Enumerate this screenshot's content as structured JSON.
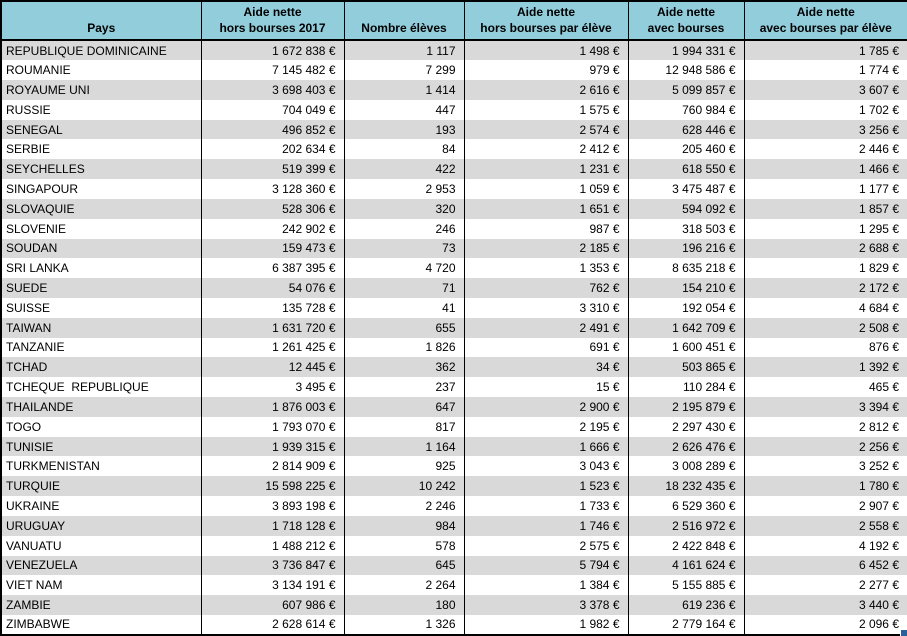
{
  "colors": {
    "header_bg": "#92CDDC",
    "stripe_bg": "#D9D9D9",
    "row_bg": "#FFFFFF",
    "border": "#000000",
    "fill_handle": "#2A6099"
  },
  "table": {
    "columns": [
      {
        "label": "Pays"
      },
      {
        "label": "Aide nette\nhors bourses 2017"
      },
      {
        "label": "Nombre élèves"
      },
      {
        "label": "Aide nette\nhors bourses par élève"
      },
      {
        "label": "Aide nette\navec bourses"
      },
      {
        "label": "Aide nette\navec bourses par élève"
      }
    ],
    "rows": [
      [
        "REPUBLIQUE DOMINICAINE",
        "1 672 838 €",
        "1 117",
        "1 498 €",
        "1 994 331 €",
        "1 785 €"
      ],
      [
        "ROUMANIE",
        "7 145 482 €",
        "7 299",
        "979 €",
        "12 948 586 €",
        "1 774 €"
      ],
      [
        "ROYAUME UNI",
        "3 698 403 €",
        "1 414",
        "2 616 €",
        "5 099 857 €",
        "3 607 €"
      ],
      [
        "RUSSIE",
        "704 049 €",
        "447",
        "1 575 €",
        "760 984 €",
        "1 702 €"
      ],
      [
        "SENEGAL",
        "496 852 €",
        "193",
        "2 574 €",
        "628 446 €",
        "3 256 €"
      ],
      [
        "SERBIE",
        "202 634 €",
        "84",
        "2 412 €",
        "205 460 €",
        "2 446 €"
      ],
      [
        "SEYCHELLES",
        "519 399 €",
        "422",
        "1 231 €",
        "618 550 €",
        "1 466 €"
      ],
      [
        "SINGAPOUR",
        "3 128 360 €",
        "2 953",
        "1 059 €",
        "3 475 487 €",
        "1 177 €"
      ],
      [
        "SLOVAQUIE",
        "528 306 €",
        "320",
        "1 651 €",
        "594 092 €",
        "1 857 €"
      ],
      [
        "SLOVENIE",
        "242 902 €",
        "246",
        "987 €",
        "318 503 €",
        "1 295 €"
      ],
      [
        "SOUDAN",
        "159 473 €",
        "73",
        "2 185 €",
        "196 216 €",
        "2 688 €"
      ],
      [
        "SRI LANKA",
        "6 387 395 €",
        "4 720",
        "1 353 €",
        "8 635 218 €",
        "1 829 €"
      ],
      [
        "SUEDE",
        "54 076 €",
        "71",
        "762 €",
        "154 210 €",
        "2 172 €"
      ],
      [
        "SUISSE",
        "135 728 €",
        "41",
        "3 310 €",
        "192 054 €",
        "4 684 €"
      ],
      [
        "TAIWAN",
        "1 631 720 €",
        "655",
        "2 491 €",
        "1 642 709 €",
        "2 508 €"
      ],
      [
        "TANZANIE",
        "1 261 425 €",
        "1 826",
        "691 €",
        "1 600 451 €",
        "876 €"
      ],
      [
        "TCHAD",
        "12 445 €",
        "362",
        "34 €",
        "503 865 €",
        "1 392 €"
      ],
      [
        "TCHEQUE  REPUBLIQUE",
        "3 495 €",
        "237",
        "15 €",
        "110 284 €",
        "465 €"
      ],
      [
        "THAILANDE",
        "1 876 003 €",
        "647",
        "2 900 €",
        "2 195 879 €",
        "3 394 €"
      ],
      [
        "TOGO",
        "1 793 070 €",
        "817",
        "2 195 €",
        "2 297 430 €",
        "2 812 €"
      ],
      [
        "TUNISIE",
        "1 939 315 €",
        "1 164",
        "1 666 €",
        "2 626 476 €",
        "2 256 €"
      ],
      [
        "TURKMENISTAN",
        "2 814 909 €",
        "925",
        "3 043 €",
        "3 008 289 €",
        "3 252 €"
      ],
      [
        "TURQUIE",
        "15 598 225 €",
        "10 242",
        "1 523 €",
        "18 232 435 €",
        "1 780 €"
      ],
      [
        "UKRAINE",
        "3 893 198 €",
        "2 246",
        "1 733 €",
        "6 529 360 €",
        "2 907 €"
      ],
      [
        "URUGUAY",
        "1 718 128 €",
        "984",
        "1 746 €",
        "2 516 972 €",
        "2 558 €"
      ],
      [
        "VANUATU",
        "1 488 212 €",
        "578",
        "2 575 €",
        "2 422 848 €",
        "4 192 €"
      ],
      [
        "VENEZUELA",
        "3 736 847 €",
        "645",
        "5 794 €",
        "4 161 624 €",
        "6 452 €"
      ],
      [
        "VIET NAM",
        "3 134 191 €",
        "2 264",
        "1 384 €",
        "5 155 885 €",
        "2 277 €"
      ],
      [
        "ZAMBIE",
        "607 986 €",
        "180",
        "3 378 €",
        "619 236 €",
        "3 440 €"
      ],
      [
        "ZIMBABWE",
        "2 628 614 €",
        "1 326",
        "1 982 €",
        "2 779 164 €",
        "2 096 €"
      ]
    ]
  }
}
